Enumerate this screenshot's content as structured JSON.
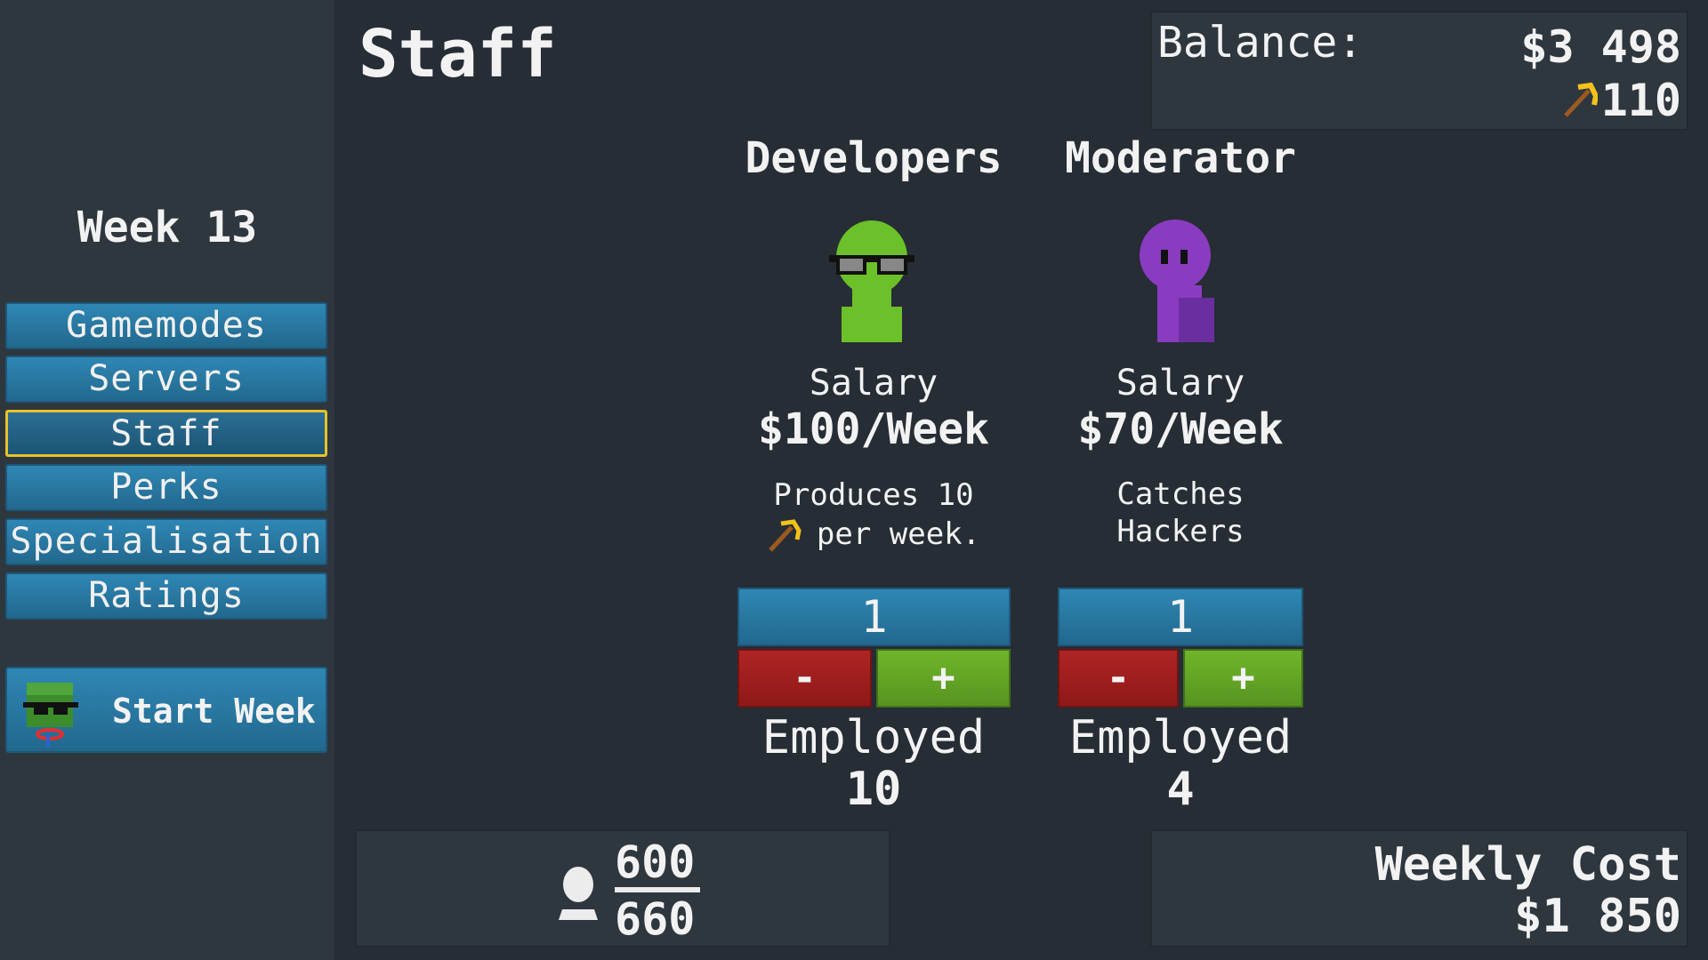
{
  "sidebar": {
    "week": "Week 13",
    "items": [
      {
        "label": "Gamemodes"
      },
      {
        "label": "Servers"
      },
      {
        "label": "Staff",
        "active": true
      },
      {
        "label": "Perks"
      },
      {
        "label": "Specialisation"
      },
      {
        "label": "Ratings"
      }
    ],
    "start_week": "Start Week"
  },
  "header": {
    "title": "Staff",
    "balance_label": "Balance:",
    "balance": "$3 498",
    "resource": "110",
    "resource_icon": "pickaxe-icon"
  },
  "staff": [
    {
      "name": "Developers",
      "salary_label": "Salary",
      "salary": "$100/Week",
      "desc1": "Produces 10",
      "desc2": "per week.",
      "count": "1",
      "minus": "-",
      "plus": "+",
      "employed_label": "Employed",
      "employed": "10",
      "color": "#6cc02a"
    },
    {
      "name": "Moderator",
      "salary_label": "Salary",
      "salary": "$70/Week",
      "desc1": "Catches",
      "desc2": "Hackers",
      "count": "1",
      "minus": "-",
      "plus": "+",
      "employed_label": "Employed",
      "employed": "4",
      "color": "#8a3cc0"
    }
  ],
  "capacity": {
    "current": "600",
    "max": "660"
  },
  "weekly_cost": {
    "label": "Weekly Cost",
    "value": "$1 850"
  },
  "colors": {
    "button": "#2a7aa4",
    "active_border": "#e6c229",
    "minus": "#a01f1f",
    "plus": "#64a825"
  }
}
